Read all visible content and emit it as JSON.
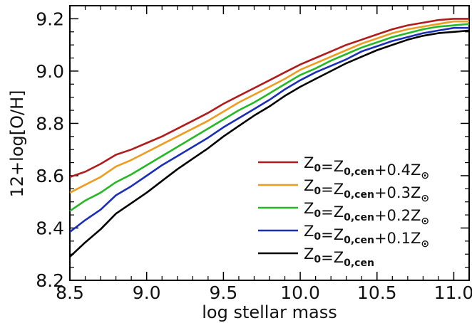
{
  "chart_data": {
    "type": "line",
    "xlabel": "log stellar mass",
    "ylabel": "12+log[O/H]",
    "xlim": [
      8.5,
      11.1
    ],
    "ylim": [
      8.2,
      9.25
    ],
    "xticks": [
      "8.5",
      "9.0",
      "9.5",
      "10.0",
      "10.5",
      "11.0"
    ],
    "yticks": [
      "8.2",
      "8.4",
      "8.6",
      "8.8",
      "9.0",
      "9.2"
    ],
    "grid": false,
    "legend_position": "bottom-right",
    "x": [
      8.5,
      8.6,
      8.7,
      8.8,
      8.9,
      9.0,
      9.1,
      9.2,
      9.3,
      9.4,
      9.5,
      9.6,
      9.7,
      9.8,
      9.9,
      10.0,
      10.1,
      10.2,
      10.3,
      10.4,
      10.5,
      10.6,
      10.7,
      10.8,
      10.9,
      11.0,
      11.1
    ],
    "series": [
      {
        "color": "#b01c1c",
        "legend": {
          "lhs": "Z",
          "lhs_sub": "0",
          "eq": "=Z",
          "rhs_sub": "0,cen",
          "rhs": "+0.4Z",
          "sun": "⊙"
        },
        "values": [
          8.595,
          8.615,
          8.645,
          8.68,
          8.7,
          8.725,
          8.75,
          8.78,
          8.81,
          8.84,
          8.875,
          8.905,
          8.935,
          8.965,
          8.995,
          9.025,
          9.05,
          9.075,
          9.1,
          9.12,
          9.14,
          9.16,
          9.175,
          9.185,
          9.195,
          9.2,
          9.2
        ]
      },
      {
        "color": "#ee9c1e",
        "legend": {
          "lhs": "Z",
          "lhs_sub": "0",
          "eq": "=Z",
          "rhs_sub": "0,cen",
          "rhs": "+0.3Z",
          "sun": "⊙"
        },
        "values": [
          8.535,
          8.565,
          8.595,
          8.635,
          8.66,
          8.69,
          8.72,
          8.75,
          8.78,
          8.81,
          8.845,
          8.88,
          8.91,
          8.94,
          8.97,
          9.005,
          9.03,
          9.055,
          9.08,
          9.105,
          9.125,
          9.145,
          9.16,
          9.17,
          9.18,
          9.19,
          9.19
        ]
      },
      {
        "color": "#25b825",
        "legend": {
          "lhs": "Z",
          "lhs_sub": "0",
          "eq": "=Z",
          "rhs_sub": "0,cen",
          "rhs": "+0.2Z",
          "sun": "⊙"
        },
        "values": [
          8.465,
          8.505,
          8.535,
          8.575,
          8.605,
          8.64,
          8.675,
          8.71,
          8.745,
          8.78,
          8.815,
          8.85,
          8.88,
          8.915,
          8.95,
          8.985,
          9.01,
          9.04,
          9.065,
          9.09,
          9.11,
          9.13,
          9.145,
          9.16,
          9.17,
          9.175,
          9.18
        ]
      },
      {
        "color": "#1a2eb8",
        "legend": {
          "lhs": "Z",
          "lhs_sub": "0",
          "eq": "=Z",
          "rhs_sub": "0,cen",
          "rhs": "+0.1Z",
          "sun": "⊙"
        },
        "values": [
          8.385,
          8.43,
          8.47,
          8.525,
          8.56,
          8.6,
          8.64,
          8.675,
          8.71,
          8.745,
          8.785,
          8.82,
          8.855,
          8.89,
          8.93,
          8.965,
          8.995,
          9.02,
          9.045,
          9.075,
          9.095,
          9.115,
          9.13,
          9.145,
          9.155,
          9.165,
          9.165
        ]
      },
      {
        "color": "#000000",
        "legend": {
          "lhs": "Z",
          "lhs_sub": "0",
          "eq": "=Z",
          "rhs_sub": "0,cen",
          "rhs": "",
          "sun": ""
        },
        "values": [
          8.29,
          8.345,
          8.395,
          8.455,
          8.495,
          8.535,
          8.58,
          8.625,
          8.665,
          8.705,
          8.75,
          8.79,
          8.83,
          8.865,
          8.905,
          8.94,
          8.97,
          9.0,
          9.03,
          9.055,
          9.08,
          9.1,
          9.12,
          9.135,
          9.145,
          9.15,
          9.155
        ]
      }
    ]
  }
}
